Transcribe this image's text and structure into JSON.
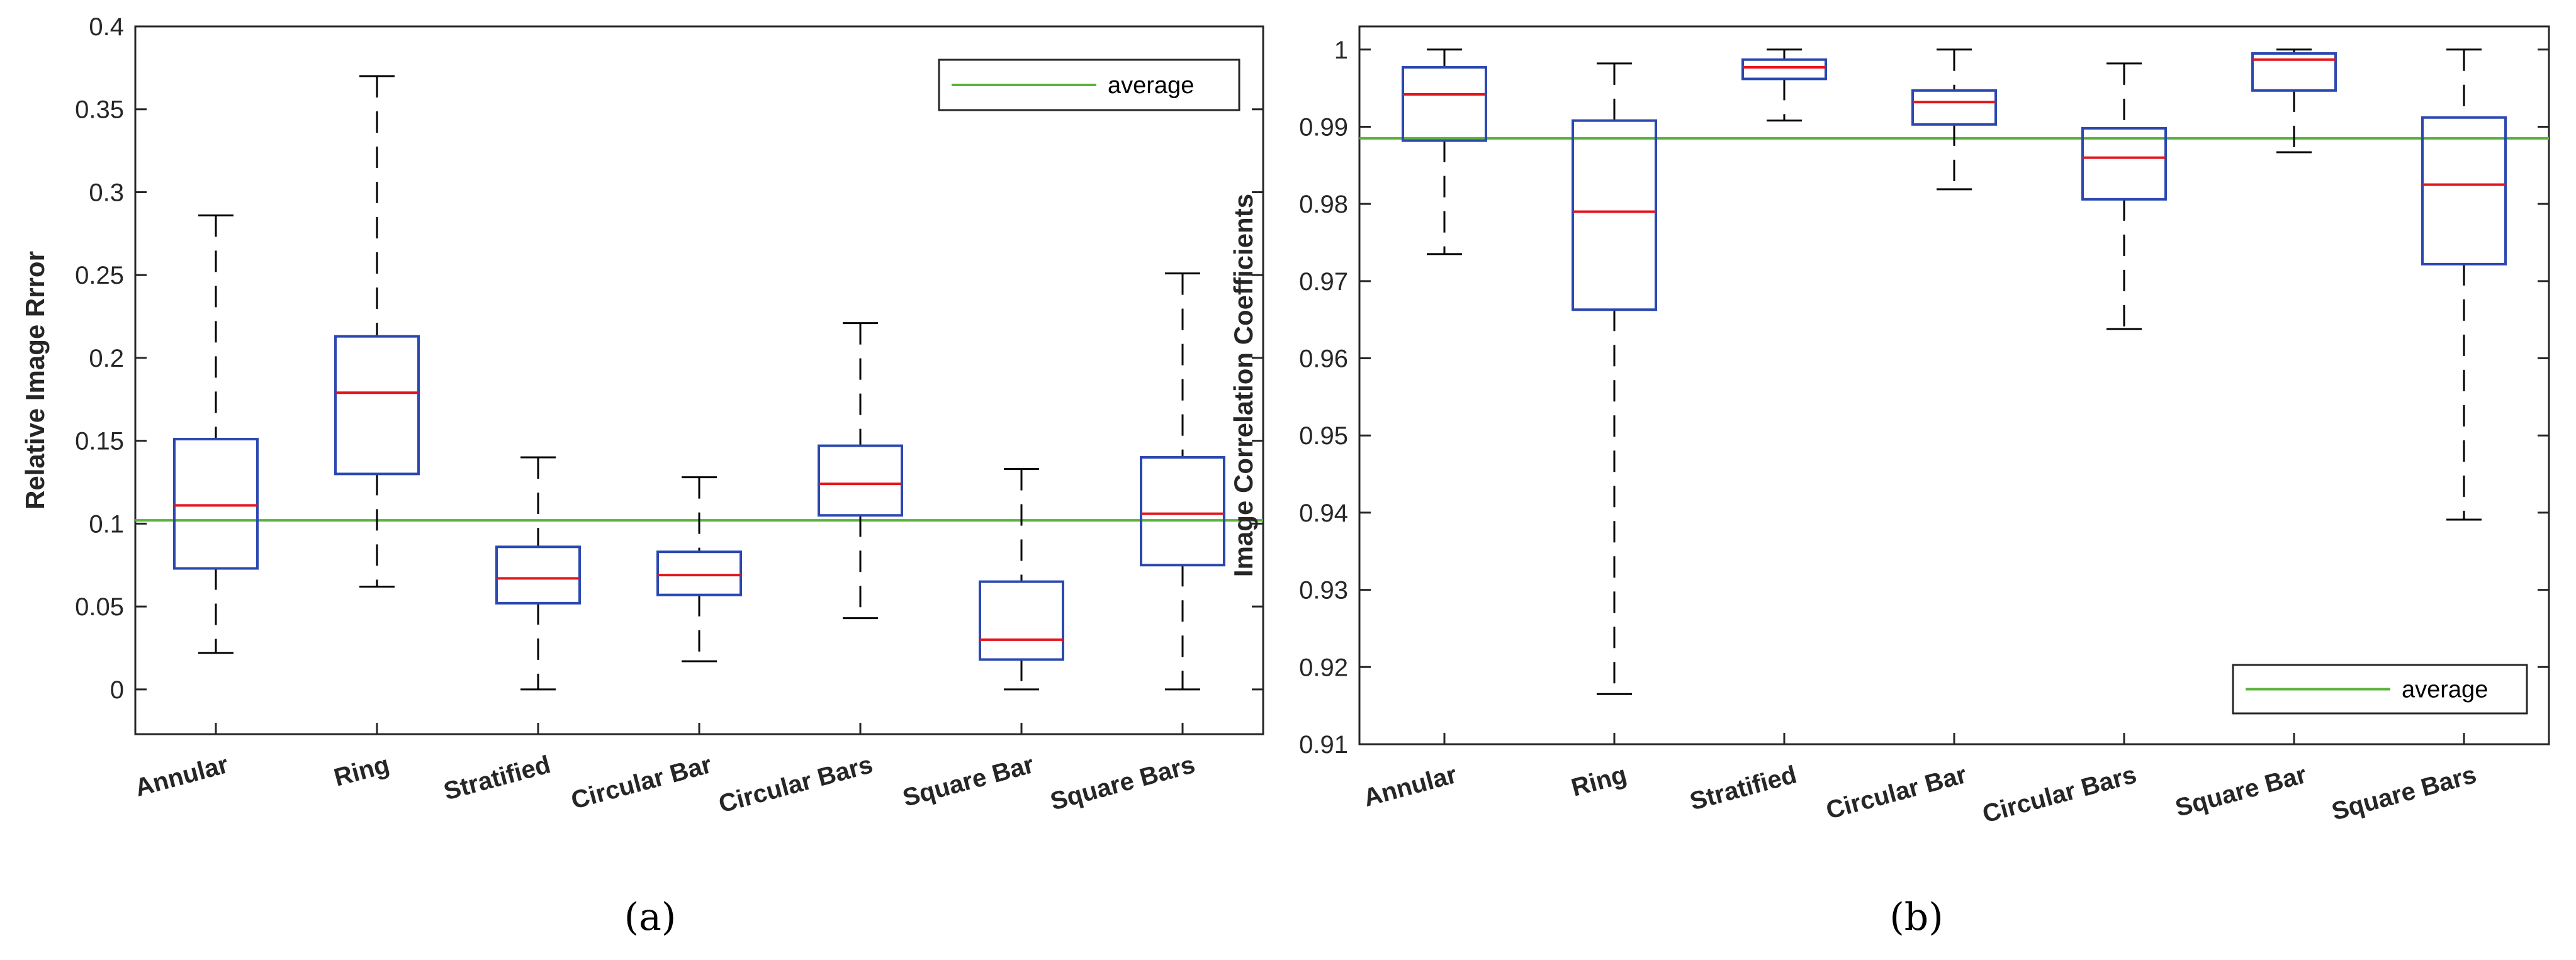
{
  "colors": {
    "box": "#2b48b0",
    "median": "#e4141b",
    "whisker": "#000000",
    "average": "#58b33a",
    "axes": "#262626"
  },
  "chart_data": [
    {
      "id": "a",
      "type": "box",
      "caption": "(a)",
      "ylabel": "Relative Image Rrror",
      "xlabel": "",
      "ylim": [
        -0.027,
        0.4
      ],
      "yticks": [
        0,
        0.05,
        0.1,
        0.15,
        0.2,
        0.25,
        0.3,
        0.35,
        0.4
      ],
      "ytick_labels": [
        "0",
        "0.05",
        "0.1",
        "0.15",
        "0.2",
        "0.25",
        "0.3",
        "0.35",
        "0.4"
      ],
      "categories": [
        "Annular",
        "Ring",
        "Stratified",
        "Circular Bar",
        "Circular Bars",
        "Square Bar",
        "Square Bars"
      ],
      "boxes": [
        {
          "min": 0.022,
          "q1": 0.073,
          "median": 0.111,
          "q3": 0.151,
          "max": 0.286
        },
        {
          "min": 0.062,
          "q1": 0.13,
          "median": 0.179,
          "q3": 0.213,
          "max": 0.37
        },
        {
          "min": 0.0,
          "q1": 0.052,
          "median": 0.067,
          "q3": 0.086,
          "max": 0.14
        },
        {
          "min": 0.017,
          "q1": 0.057,
          "median": 0.069,
          "q3": 0.083,
          "max": 0.128
        },
        {
          "min": 0.043,
          "q1": 0.105,
          "median": 0.124,
          "q3": 0.147,
          "max": 0.221
        },
        {
          "min": 0.0,
          "q1": 0.018,
          "median": 0.03,
          "q3": 0.065,
          "max": 0.133
        },
        {
          "min": 0.0,
          "q1": 0.075,
          "median": 0.106,
          "q3": 0.14,
          "max": 0.251
        }
      ],
      "average": 0.102,
      "legend": {
        "label": "average",
        "position": "top-right"
      },
      "grid": false
    },
    {
      "id": "b",
      "type": "box",
      "caption": "(b)",
      "ylabel": "Image Correlation Coefficients",
      "xlabel": "",
      "ylim": [
        0.91,
        1.003
      ],
      "yticks": [
        0.91,
        0.92,
        0.93,
        0.94,
        0.95,
        0.96,
        0.97,
        0.98,
        0.99,
        1
      ],
      "ytick_labels": [
        "0.91",
        "0.92",
        "0.93",
        "0.94",
        "0.95",
        "0.96",
        "0.97",
        "0.98",
        "0.99",
        "1"
      ],
      "categories": [
        "Annular",
        "Ring",
        "Stratified",
        "Circular Bar",
        "Circular Bars",
        "Square Bar",
        "Square Bars"
      ],
      "boxes": [
        {
          "min": 0.9735,
          "q1": 0.9882,
          "median": 0.9942,
          "q3": 0.9977,
          "max": 1.0
        },
        {
          "min": 0.9165,
          "q1": 0.9663,
          "median": 0.979,
          "q3": 0.9908,
          "max": 0.9982
        },
        {
          "min": 0.9908,
          "q1": 0.9962,
          "median": 0.9977,
          "q3": 0.9987,
          "max": 1.0
        },
        {
          "min": 0.9819,
          "q1": 0.9903,
          "median": 0.9932,
          "q3": 0.9947,
          "max": 1.0
        },
        {
          "min": 0.9638,
          "q1": 0.9806,
          "median": 0.986,
          "q3": 0.9898,
          "max": 0.9982
        },
        {
          "min": 0.9867,
          "q1": 0.9947,
          "median": 0.9987,
          "q3": 0.9995,
          "max": 1.0
        },
        {
          "min": 0.9391,
          "q1": 0.9722,
          "median": 0.9825,
          "q3": 0.9912,
          "max": 1.0
        }
      ],
      "average": 0.9885,
      "legend": {
        "label": "average",
        "position": "bottom-right"
      },
      "grid": false
    }
  ]
}
